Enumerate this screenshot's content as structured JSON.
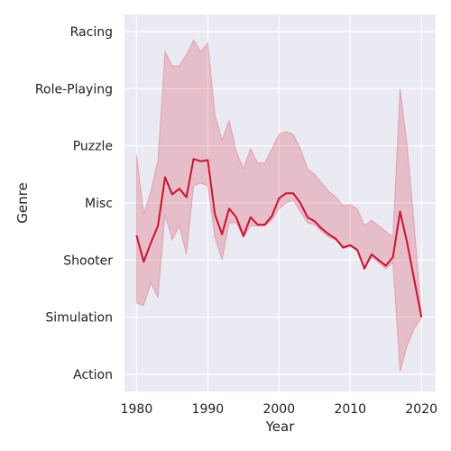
{
  "chart_data": {
    "type": "line",
    "title": "",
    "xlabel": "Year",
    "ylabel": "Genre",
    "x_ticks": [
      1980,
      1990,
      2000,
      2010,
      2020
    ],
    "y_categories": [
      "Racing",
      "Role-Playing",
      "Puzzle",
      "Misc",
      "Shooter",
      "Simulation",
      "Action"
    ],
    "xlim": [
      1978.3,
      2022
    ],
    "ylim": [
      -0.3,
      6.3
    ],
    "grid": true,
    "legend": "none",
    "series": [
      {
        "x": [
          1980,
          1981,
          1982,
          1983,
          1984,
          1985,
          1986,
          1987,
          1988,
          1989,
          1990,
          1991,
          1992,
          1993,
          1994,
          1995,
          1996,
          1997,
          1998,
          1999,
          2000,
          2001,
          2002,
          2003,
          2004,
          2005,
          2006,
          2007,
          2008,
          2009,
          2010,
          2011,
          2012,
          2013,
          2014,
          2015,
          2016,
          2017,
          2018,
          2019,
          2020
        ],
        "y": [
          2.43,
          1.97,
          2.3,
          2.6,
          3.45,
          3.15,
          3.25,
          3.1,
          3.77,
          3.73,
          3.75,
          2.8,
          2.45,
          2.9,
          2.75,
          2.42,
          2.75,
          2.62,
          2.62,
          2.77,
          3.08,
          3.17,
          3.17,
          3.0,
          2.75,
          2.68,
          2.55,
          2.45,
          2.37,
          2.22,
          2.26,
          2.18,
          1.85,
          2.1,
          2.0,
          1.9,
          2.05,
          2.85,
          2.3,
          1.65,
          1.0
        ],
        "ci_low": [
          1.25,
          1.2,
          1.6,
          1.35,
          2.8,
          2.35,
          2.6,
          2.1,
          3.3,
          3.35,
          3.3,
          2.4,
          2.0,
          2.65,
          2.65,
          2.4,
          2.6,
          2.6,
          2.6,
          2.7,
          2.9,
          3.0,
          3.05,
          2.85,
          2.65,
          2.62,
          2.5,
          2.4,
          2.35,
          2.2,
          2.24,
          2.16,
          1.85,
          2.05,
          1.95,
          1.85,
          1.95,
          0.05,
          0.5,
          0.8,
          1.0
        ],
        "ci_high": [
          3.85,
          2.8,
          3.2,
          3.75,
          5.65,
          5.4,
          5.4,
          5.6,
          5.85,
          5.65,
          5.8,
          4.55,
          4.1,
          4.45,
          3.9,
          3.6,
          3.95,
          3.7,
          3.7,
          3.95,
          4.2,
          4.25,
          4.2,
          3.95,
          3.6,
          3.5,
          3.35,
          3.2,
          3.1,
          2.95,
          2.97,
          2.9,
          2.6,
          2.7,
          2.6,
          2.5,
          2.4,
          5.0,
          4.0,
          2.6,
          1.0
        ]
      }
    ]
  },
  "colors": {
    "plot_bg": "#eaeaf2",
    "grid": "#ffffff",
    "line": "#d0102a",
    "band": "#d0102a",
    "text": "#222222"
  }
}
